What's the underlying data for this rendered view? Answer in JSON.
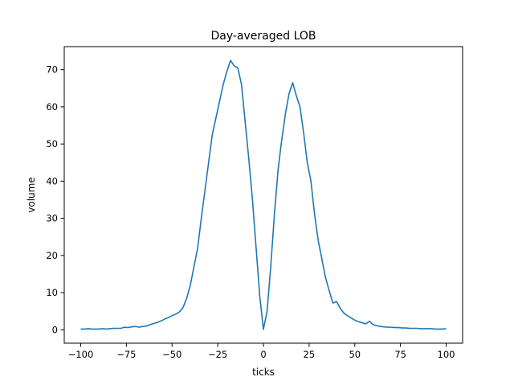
{
  "chart_data": {
    "type": "line",
    "title": "Day-averaged LOB",
    "xlabel": "ticks",
    "ylabel": "volume",
    "xlim": [
      -109,
      109
    ],
    "ylim": [
      -3.6,
      76.2
    ],
    "xticks": [
      -100,
      -75,
      -50,
      -25,
      0,
      25,
      50,
      75,
      100
    ],
    "yticks": [
      0,
      10,
      20,
      30,
      40,
      50,
      60,
      70
    ],
    "grid": false,
    "line_color": "#1f77b4",
    "series": [
      {
        "x": [
          -100,
          -98,
          -96,
          -94,
          -92,
          -90,
          -88,
          -86,
          -84,
          -82,
          -80,
          -78,
          -76,
          -74,
          -72,
          -70,
          -68,
          -66,
          -64,
          -62,
          -60,
          -58,
          -56,
          -54,
          -52,
          -50,
          -48,
          -46,
          -44,
          -42,
          -40,
          -38,
          -36,
          -34,
          -32,
          -30,
          -28,
          -26,
          -24,
          -22,
          -20,
          -18,
          -16,
          -14,
          -12,
          -10,
          -8,
          -6,
          -4,
          -2,
          0,
          2,
          4,
          6,
          8,
          10,
          12,
          14,
          16,
          18,
          20,
          22,
          24,
          26,
          28,
          30,
          32,
          34,
          36,
          38,
          40,
          42,
          44,
          46,
          48,
          50,
          52,
          54,
          56,
          58,
          60,
          62,
          64,
          66,
          68,
          70,
          72,
          74,
          76,
          78,
          80,
          82,
          84,
          86,
          88,
          90,
          92,
          94,
          96,
          98,
          100
        ],
        "values": [
          0.2,
          0.2,
          0.3,
          0.2,
          0.2,
          0.2,
          0.3,
          0.2,
          0.3,
          0.4,
          0.4,
          0.4,
          0.7,
          0.6,
          0.8,
          0.9,
          0.7,
          0.9,
          1.0,
          1.4,
          1.7,
          2.0,
          2.4,
          2.9,
          3.3,
          3.8,
          4.2,
          4.8,
          6.0,
          8.5,
          12.0,
          17.0,
          22.0,
          30.0,
          37.5,
          45.0,
          52.5,
          57.0,
          61.5,
          66.0,
          69.5,
          72.5,
          71.0,
          70.5,
          66.0,
          56.0,
          46.0,
          35.0,
          22.0,
          9.0,
          0.1,
          5.0,
          17.0,
          31.0,
          43.0,
          51.0,
          58.0,
          63.5,
          66.5,
          63.0,
          60.0,
          53.0,
          45.0,
          40.0,
          31.0,
          24.0,
          19.0,
          14.0,
          10.5,
          7.2,
          7.6,
          5.8,
          4.5,
          3.8,
          3.2,
          2.6,
          2.2,
          1.9,
          1.6,
          2.3,
          1.4,
          1.1,
          0.9,
          0.8,
          0.7,
          0.7,
          0.6,
          0.6,
          0.5,
          0.5,
          0.4,
          0.4,
          0.4,
          0.3,
          0.3,
          0.3,
          0.3,
          0.2,
          0.2,
          0.2,
          0.3
        ]
      }
    ]
  }
}
